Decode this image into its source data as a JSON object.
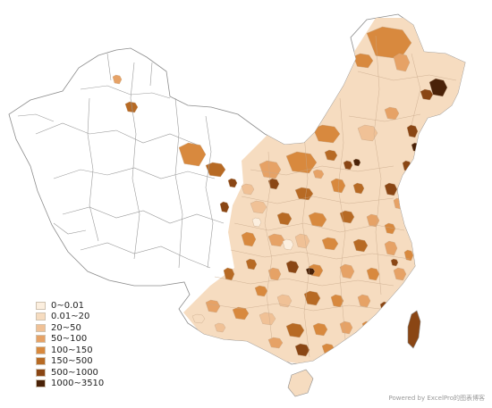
{
  "legend": {
    "items": [
      {
        "label": "0~0.01",
        "color": "#fcefdf"
      },
      {
        "label": "0.01~20",
        "color": "#f6dcc0"
      },
      {
        "label": "20~50",
        "color": "#f0c196"
      },
      {
        "label": "50~100",
        "color": "#e6a266"
      },
      {
        "label": "100~150",
        "color": "#d8893e"
      },
      {
        "label": "150~500",
        "color": "#b76a24"
      },
      {
        "label": "500~1000",
        "color": "#8a4614"
      },
      {
        "label": "1000~3510",
        "color": "#4a2208"
      }
    ]
  },
  "credit": "Powered by ExcelPro的图表博客",
  "colors": {
    "unreported_fill": "#ffffff",
    "border": "#8c8c8c"
  }
}
